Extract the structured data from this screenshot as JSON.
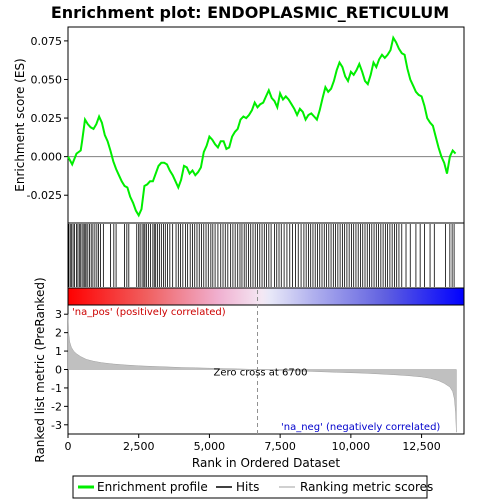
{
  "chart_data": {
    "type": "line",
    "title": "Enrichment plot: ENDOPLASMIC_RETICULUM",
    "top_panel": {
      "ylabel": "Enrichment score (ES)",
      "ylim": [
        -0.043,
        0.084
      ],
      "yticks": [
        -0.025,
        0.0,
        0.025,
        0.05,
        0.075
      ],
      "ytick_labels": [
        "-0.025",
        "0.000",
        "0.025",
        "0.050",
        "0.075"
      ],
      "series": [
        {
          "name": "Enrichment profile",
          "color": "#00ee00",
          "x": [
            0,
            150,
            300,
            450,
            500,
            600,
            700,
            800,
            900,
            1000,
            1100,
            1200,
            1300,
            1400,
            1500,
            1600,
            1700,
            1800,
            1900,
            2000,
            2100,
            2200,
            2300,
            2400,
            2500,
            2600,
            2700,
            2800,
            2900,
            3000,
            3100,
            3200,
            3300,
            3400,
            3500,
            3600,
            3700,
            3800,
            3900,
            4000,
            4100,
            4200,
            4300,
            4400,
            4500,
            4600,
            4700,
            4800,
            4900,
            5000,
            5100,
            5200,
            5300,
            5400,
            5500,
            5600,
            5700,
            5800,
            5900,
            6000,
            6100,
            6200,
            6300,
            6400,
            6500,
            6600,
            6700,
            6800,
            6900,
            7000,
            7100,
            7200,
            7300,
            7400,
            7500,
            7600,
            7700,
            7800,
            7900,
            8000,
            8100,
            8200,
            8300,
            8400,
            8500,
            8600,
            8700,
            8800,
            8900,
            9000,
            9100,
            9200,
            9300,
            9400,
            9500,
            9600,
            9700,
            9800,
            9900,
            10000,
            10100,
            10200,
            10300,
            10400,
            10500,
            10600,
            10700,
            10800,
            10900,
            11000,
            11100,
            11200,
            11300,
            11400,
            11500,
            11600,
            11700,
            11800,
            11900,
            12000,
            12100,
            12200,
            12300,
            12400,
            12500,
            12600,
            12700,
            12800,
            12900,
            13000,
            13100,
            13200,
            13300,
            13400,
            13500,
            13600,
            13700
          ],
          "y": [
            0.0,
            -0.005,
            0.002,
            0.004,
            0.01,
            0.024,
            0.021,
            0.019,
            0.018,
            0.021,
            0.026,
            0.022,
            0.014,
            0.01,
            0.004,
            -0.003,
            -0.008,
            -0.012,
            -0.016,
            -0.019,
            -0.02,
            -0.026,
            -0.03,
            -0.035,
            -0.038,
            -0.034,
            -0.019,
            -0.018,
            -0.016,
            -0.016,
            -0.011,
            -0.006,
            -0.004,
            -0.004,
            -0.005,
            -0.009,
            -0.012,
            -0.016,
            -0.02,
            -0.015,
            -0.006,
            -0.007,
            -0.011,
            -0.009,
            -0.012,
            -0.01,
            -0.007,
            0.003,
            0.007,
            0.013,
            0.011,
            0.008,
            0.006,
            0.01,
            0.01,
            0.005,
            0.006,
            0.013,
            0.016,
            0.018,
            0.024,
            0.026,
            0.025,
            0.027,
            0.03,
            0.035,
            0.032,
            0.034,
            0.035,
            0.039,
            0.043,
            0.038,
            0.036,
            0.032,
            0.041,
            0.037,
            0.039,
            0.037,
            0.034,
            0.031,
            0.027,
            0.031,
            0.029,
            0.024,
            0.027,
            0.028,
            0.026,
            0.024,
            0.03,
            0.038,
            0.045,
            0.042,
            0.044,
            0.049,
            0.056,
            0.061,
            0.058,
            0.052,
            0.049,
            0.055,
            0.053,
            0.056,
            0.06,
            0.055,
            0.049,
            0.047,
            0.053,
            0.061,
            0.058,
            0.063,
            0.066,
            0.064,
            0.066,
            0.069,
            0.077,
            0.074,
            0.07,
            0.067,
            0.066,
            0.057,
            0.05,
            0.046,
            0.042,
            0.04,
            0.039,
            0.033,
            0.025,
            0.022,
            0.02,
            0.013,
            0.006,
            0.0,
            -0.004,
            -0.011,
            0.0,
            0.004,
            0.002
          ]
        }
      ],
      "legend_entries": [
        "Enrichment profile",
        "Hits",
        "Ranking metric scores"
      ],
      "legend_placement": "bottom"
    },
    "hits_panel": {
      "hit_ranks": [
        30,
        80,
        130,
        180,
        230,
        300,
        350,
        400,
        450,
        500,
        560,
        600,
        640,
        700,
        760,
        820,
        880,
        950,
        1020,
        1080,
        1150,
        1250,
        1500,
        1620,
        1700,
        2000,
        2080,
        2150,
        2430,
        2500,
        2550,
        2620,
        2680,
        2720,
        2780,
        2850,
        2920,
        3000,
        3050,
        3100,
        3160,
        3230,
        3300,
        3380,
        3440,
        3520,
        3600,
        3700,
        3820,
        3900,
        3980,
        4060,
        4150,
        4230,
        4320,
        4400,
        4480,
        4560,
        4640,
        4720,
        4800,
        4880,
        4960,
        5050,
        5120,
        5200,
        5300,
        5400,
        5480,
        5560,
        5650,
        5750,
        5830,
        5910,
        6000,
        6080,
        6150,
        6230,
        6300,
        6380,
        6460,
        6540,
        6620,
        6700,
        6780,
        6860,
        6940,
        7020,
        7100,
        7180,
        7300,
        7380,
        7460,
        7540,
        7640,
        7740,
        7840,
        7940,
        8040,
        8140,
        8240,
        8340,
        8420,
        8500,
        8580,
        8660,
        8740,
        8820,
        8900,
        8980,
        9060,
        9140,
        9220,
        9300,
        9380,
        9460,
        9540,
        9620,
        9700,
        9780,
        9860,
        9940,
        10020,
        10100,
        10180,
        10260,
        10340,
        10420,
        10500,
        10580,
        10660,
        10740,
        10820,
        10900,
        10980,
        11060,
        11140,
        11220,
        11300,
        11380,
        11460,
        11540,
        11620,
        11700,
        11800,
        11950,
        12100,
        12300,
        12450,
        12600,
        12800,
        12950,
        13350,
        13500,
        13580,
        13650
      ]
    },
    "ranking_panel": {
      "ylabel": "Ranked list metric (PreRanked)",
      "xlabel": "Rank in Ordered Dataset",
      "ylim": [
        -3.5,
        3.5
      ],
      "yticks": [
        -3,
        -2,
        -1,
        0,
        1,
        2,
        3
      ],
      "xlim": [
        0,
        14000
      ],
      "xticks": [
        0,
        2500,
        5000,
        7500,
        10000,
        12500
      ],
      "xtick_labels": [
        "0",
        "2,500",
        "5,000",
        "7,500",
        "10,000",
        "12,500"
      ],
      "zero_cross_rank": 6700,
      "zero_cross_label": "Zero cross at 6700",
      "pos_label": "'na_pos' (positively correlated)",
      "neg_label": "'na_neg' (negatively correlated)",
      "metric_curve": {
        "x": [
          0,
          20,
          60,
          120,
          200,
          300,
          450,
          650,
          900,
          1200,
          1600,
          2000,
          2500,
          3000,
          3500,
          4000,
          4500,
          5000,
          5500,
          6000,
          6700,
          7500,
          8500,
          9500,
          10500,
          11500,
          12000,
          12500,
          12800,
          13100,
          13300,
          13500,
          13600,
          13660,
          13700,
          13730
        ],
        "y": [
          3.0,
          2.0,
          1.5,
          1.2,
          1.0,
          0.85,
          0.7,
          0.55,
          0.45,
          0.37,
          0.3,
          0.25,
          0.2,
          0.17,
          0.14,
          0.11,
          0.09,
          0.07,
          0.05,
          0.03,
          0.0,
          -0.05,
          -0.1,
          -0.15,
          -0.2,
          -0.28,
          -0.33,
          -0.4,
          -0.48,
          -0.6,
          -0.75,
          -0.95,
          -1.2,
          -1.6,
          -2.3,
          -3.4
        ]
      }
    },
    "colors": {
      "profile": "#00ee00",
      "hits": "#000000",
      "metric_fill": "#c0c0c0",
      "pos_label": "#cc0000",
      "neg_label": "#0000cc",
      "bar_positive": "#ff0000",
      "bar_negative": "#0000ff"
    }
  }
}
